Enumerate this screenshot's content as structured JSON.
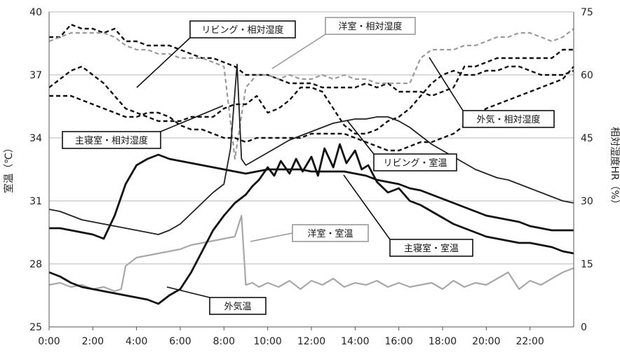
{
  "chart_data": {
    "type": "line",
    "ylabel_left": "室温（℃）",
    "ylabel_right": "相対湿度HR（%）",
    "x_ticks": [
      "0:00",
      "2:00",
      "4:00",
      "6:00",
      "8:00",
      "10:00",
      "12:00",
      "14:00",
      "16:00",
      "18:00",
      "20:00",
      "22:00"
    ],
    "xlim": [
      0,
      24
    ],
    "ylim_left": [
      25,
      40
    ],
    "yticks_left": [
      25,
      28,
      31,
      34,
      37,
      40
    ],
    "ylim_right": [
      0,
      75
    ],
    "yticks_right": [
      0,
      15,
      30,
      45,
      60,
      75
    ],
    "grid": true,
    "series": [
      {
        "name": "リビング・相対湿度",
        "axis": "right",
        "style": "dashed-black",
        "color": "#111111",
        "x": [
          0,
          0.5,
          1,
          1.5,
          2,
          2.5,
          3,
          3.5,
          4,
          4.5,
          5,
          5.5,
          6,
          6.5,
          7,
          7.5,
          8,
          8.5,
          9,
          9.5,
          10,
          10.5,
          11,
          11.5,
          12,
          12.5,
          13,
          13.5,
          14,
          14.5,
          15,
          15.5,
          16,
          16.5,
          17,
          17.5,
          18,
          18.5,
          19,
          19.5,
          20,
          20.5,
          21,
          21.5,
          22,
          22.5,
          23,
          23.5,
          24
        ],
        "y": [
          69,
          69,
          72,
          71,
          71,
          70,
          71,
          68,
          68,
          67,
          67,
          67,
          66,
          65,
          64,
          64,
          63,
          62,
          60,
          60,
          60,
          59,
          58,
          58,
          58,
          57,
          57,
          57,
          57,
          58,
          57,
          58,
          56,
          56,
          56,
          55,
          56,
          57,
          62,
          62,
          63,
          64,
          64,
          64,
          64,
          64,
          64,
          66,
          66
        ]
      },
      {
        "name": "洋室・相対湿度",
        "axis": "right",
        "style": "dashed-gray",
        "color": "#9a9a9a",
        "x": [
          0,
          0.5,
          1,
          1.5,
          2,
          2.5,
          3,
          3.5,
          4,
          4.5,
          5,
          5.5,
          6,
          6.5,
          7,
          7.5,
          8,
          8.5,
          9,
          9.5,
          10,
          10.5,
          11,
          11.5,
          12,
          12.5,
          13,
          13.5,
          14,
          14.5,
          15,
          15.5,
          16,
          16.5,
          17,
          17.5,
          18,
          18.5,
          19,
          19.5,
          20,
          20.5,
          21,
          21.5,
          22,
          22.5,
          23,
          23.5,
          24
        ],
        "y": [
          68,
          69,
          70,
          70,
          70,
          70,
          69,
          67,
          66,
          66,
          65,
          65,
          64,
          64,
          64,
          63,
          62,
          40,
          57,
          60,
          60,
          59,
          60,
          59,
          59,
          60,
          59,
          60,
          59,
          59,
          58,
          58,
          58,
          58,
          64,
          66,
          66,
          66,
          67,
          67,
          68,
          69,
          69,
          70,
          70,
          69,
          68,
          69,
          71
        ]
      },
      {
        "name": "主寝室・相対湿度",
        "axis": "right",
        "style": "dashed-black",
        "color": "#111111",
        "x": [
          0,
          0.5,
          1,
          1.5,
          2,
          2.5,
          3,
          3.5,
          4,
          4.5,
          5,
          5.5,
          6,
          6.5,
          7,
          7.5,
          8,
          8.5,
          9,
          9.5,
          10,
          10.5,
          11,
          11.5,
          12,
          12.5,
          13,
          13.5,
          14,
          14.5,
          15,
          15.5,
          16,
          16.5,
          17,
          17.5,
          18,
          18.5,
          19,
          19.5,
          20,
          20.5,
          21,
          21.5,
          22,
          22.5,
          23,
          23.5,
          24
        ],
        "y": [
          57,
          59,
          61,
          62,
          60,
          58,
          55,
          52,
          51,
          50,
          49,
          49,
          49,
          50,
          50,
          50,
          52,
          53,
          53,
          55,
          51,
          52,
          54,
          57,
          57,
          56,
          52,
          48,
          46,
          46,
          47,
          49,
          50,
          52,
          55,
          58,
          60,
          61,
          60,
          60,
          61,
          61,
          62,
          62,
          61,
          60,
          60,
          60,
          61
        ]
      },
      {
        "name": "外気・相対湿度",
        "axis": "right",
        "style": "dashed-black",
        "color": "#111111",
        "x": [
          0,
          0.5,
          1,
          1.5,
          2,
          2.5,
          3,
          3.5,
          4,
          4.5,
          5,
          5.5,
          6,
          6.5,
          7,
          7.5,
          8,
          8.5,
          9,
          9.5,
          10,
          10.5,
          11,
          11.5,
          12,
          12.5,
          13,
          13.5,
          14,
          14.5,
          15,
          15.5,
          16,
          16.5,
          17,
          17.5,
          18,
          18.5,
          19,
          19.5,
          20,
          20.5,
          21,
          21.5,
          22,
          22.5,
          23,
          23.5,
          24
        ],
        "y": [
          55,
          55,
          55,
          54,
          53,
          52,
          51,
          50,
          50,
          51,
          51,
          50,
          48,
          47,
          47,
          46,
          45,
          45,
          44,
          45,
          45,
          45,
          45,
          45,
          46,
          46,
          46,
          46,
          45,
          44,
          43,
          42,
          42,
          43,
          44,
          44,
          45,
          46,
          48,
          50,
          52,
          53,
          54,
          55,
          56,
          57,
          58,
          59,
          62
        ]
      },
      {
        "name": "リビング・室温",
        "axis": "left",
        "style": "solid-black-thin",
        "color": "#222222",
        "x": [
          0,
          0.5,
          1,
          1.5,
          2,
          2.5,
          3,
          3.5,
          4,
          4.5,
          5,
          5.5,
          6,
          6.5,
          7,
          7.5,
          8,
          8.3,
          8.6,
          8.8,
          9,
          9.5,
          10,
          10.5,
          11,
          11.5,
          12,
          12.5,
          13,
          13.5,
          14,
          14.5,
          15,
          15.5,
          16,
          16.5,
          17,
          17.5,
          18,
          18.5,
          19,
          19.5,
          20,
          20.5,
          21,
          21.5,
          22,
          22.5,
          23,
          23.5,
          24
        ],
        "y": [
          30.6,
          30.5,
          30.3,
          30.1,
          30.0,
          29.9,
          29.8,
          29.7,
          29.6,
          29.5,
          29.4,
          29.6,
          29.9,
          30.4,
          30.9,
          31.4,
          31.8,
          33.5,
          37.5,
          33.0,
          32.7,
          33.0,
          33.3,
          33.6,
          33.9,
          34.1,
          34.3,
          34.5,
          34.7,
          34.8,
          34.9,
          34.9,
          35.0,
          35.0,
          34.8,
          34.5,
          34.1,
          33.7,
          33.4,
          33.1,
          32.8,
          32.5,
          32.3,
          32.1,
          32.0,
          31.8,
          31.6,
          31.4,
          31.2,
          31.0,
          30.9
        ]
      },
      {
        "name": "主寝室・室温",
        "axis": "left",
        "style": "solid-black-thick",
        "color": "#111111",
        "x": [
          0,
          0.5,
          1,
          1.5,
          2,
          2.5,
          3,
          3.5,
          4,
          4.5,
          5,
          5.5,
          6,
          6.5,
          7,
          7.5,
          8,
          8.5,
          9,
          9.5,
          10,
          10.5,
          11,
          11.5,
          12,
          12.5,
          13,
          13.5,
          14,
          14.5,
          15,
          15.5,
          16,
          16.5,
          17,
          17.5,
          18,
          18.5,
          19,
          19.5,
          20,
          20.5,
          21,
          21.5,
          22,
          22.5,
          23,
          23.5,
          24
        ],
        "y": [
          29.7,
          29.7,
          29.6,
          29.5,
          29.4,
          29.2,
          30.3,
          31.8,
          32.7,
          33.0,
          33.2,
          33.0,
          32.9,
          32.8,
          32.7,
          32.6,
          32.5,
          32.4,
          32.3,
          32.4,
          32.5,
          32.5,
          32.5,
          32.5,
          32.4,
          32.4,
          32.4,
          32.4,
          32.3,
          32.2,
          32.0,
          31.9,
          31.8,
          31.6,
          31.5,
          31.3,
          31.1,
          30.9,
          30.7,
          30.5,
          30.3,
          30.2,
          30.1,
          30.0,
          29.8,
          29.7,
          29.6,
          29.6,
          29.6
        ]
      },
      {
        "name": "洋室・室温",
        "axis": "left",
        "style": "solid-gray",
        "color": "#a8a8a8",
        "x": [
          0,
          0.5,
          1,
          1.5,
          2,
          2.5,
          3,
          3.3,
          3.5,
          4,
          4.5,
          5,
          5.5,
          6,
          6.5,
          7,
          7.5,
          8,
          8.5,
          8.8,
          9,
          9.3,
          9.6,
          10,
          10.5,
          11,
          11.5,
          12,
          12.5,
          13,
          13.5,
          14,
          14.5,
          15,
          15.5,
          16,
          16.5,
          17,
          17.5,
          18,
          18.5,
          19,
          19.5,
          20,
          20.5,
          21,
          21.5,
          22,
          22.5,
          23,
          23.5,
          24
        ],
        "y": [
          27.0,
          27.1,
          26.9,
          27.0,
          26.8,
          26.9,
          26.7,
          26.8,
          27.9,
          28.3,
          28.4,
          28.5,
          28.6,
          28.7,
          28.9,
          29.0,
          29.1,
          29.2,
          29.3,
          30.3,
          27.0,
          27.1,
          26.9,
          27.1,
          26.9,
          27.2,
          26.8,
          27.2,
          27.0,
          27.3,
          26.9,
          27.1,
          27.0,
          27.2,
          26.9,
          27.1,
          26.9,
          27.0,
          27.1,
          26.8,
          27.2,
          26.9,
          27.1,
          27.0,
          27.3,
          27.6,
          26.8,
          27.2,
          27.0,
          27.3,
          27.6,
          27.8
        ]
      },
      {
        "name": "外気温",
        "axis": "left",
        "style": "solid-black-thick",
        "color": "#111111",
        "x": [
          0,
          0.5,
          1,
          1.5,
          2,
          2.5,
          3,
          3.5,
          4,
          4.5,
          5,
          5.5,
          6,
          6.5,
          7,
          7.5,
          8,
          8.5,
          9,
          9.3,
          9.6,
          10,
          10.3,
          10.6,
          11,
          11.3,
          11.6,
          12,
          12.3,
          12.6,
          13,
          13.3,
          13.6,
          14,
          14.3,
          14.6,
          15,
          15.5,
          16,
          16.5,
          17,
          17.5,
          18,
          18.5,
          19,
          19.5,
          20,
          20.5,
          21,
          21.5,
          22,
          22.5,
          23,
          23.5,
          24
        ],
        "y": [
          27.6,
          27.4,
          27.1,
          26.9,
          26.8,
          26.7,
          26.6,
          26.5,
          26.4,
          26.3,
          26.1,
          26.5,
          26.8,
          27.6,
          28.6,
          29.6,
          30.3,
          30.9,
          31.3,
          31.7,
          32.0,
          32.6,
          32.2,
          32.9,
          32.3,
          33.0,
          32.4,
          33.1,
          32.2,
          33.5,
          32.6,
          33.7,
          32.8,
          33.4,
          32.5,
          32.7,
          31.9,
          31.4,
          31.6,
          31.0,
          30.8,
          30.5,
          30.2,
          29.9,
          29.7,
          29.5,
          29.3,
          29.2,
          29.1,
          29.0,
          29.0,
          28.9,
          28.8,
          28.6,
          28.5
        ]
      }
    ],
    "annotations": [
      {
        "text": "リビング・相対湿度",
        "series": "リビング・相対湿度"
      },
      {
        "text": "洋室・相対湿度",
        "series": "洋室・相対湿度"
      },
      {
        "text": "主寝室・相対湿度",
        "series": "主寝室・相対湿度"
      },
      {
        "text": "外気・相対湿度",
        "series": "外気・相対湿度"
      },
      {
        "text": "リビング・室温",
        "series": "リビング・室温"
      },
      {
        "text": "洋室・室温",
        "series": "洋室・室温"
      },
      {
        "text": "主寝室・室温",
        "series": "主寝室・室温"
      },
      {
        "text": "外気温",
        "series": "外気温"
      }
    ]
  }
}
